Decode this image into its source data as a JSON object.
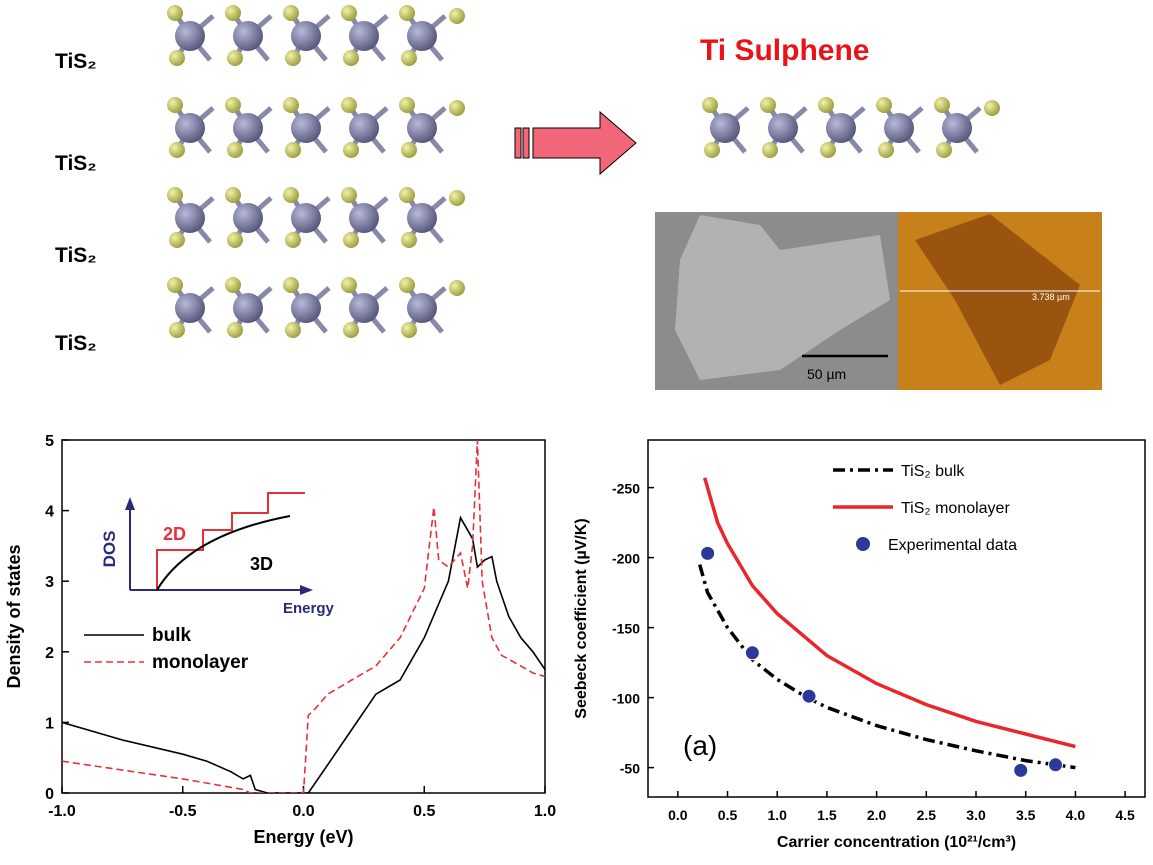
{
  "labels": [
    "TiS₂",
    "TiS₂",
    "TiS₂",
    "TiS₂"
  ],
  "title": "Ti Sulphene",
  "sem_scale": "50 µm",
  "afm_scale": "3.738 µm",
  "chart_data": [
    {
      "type": "line",
      "xlabel": "Energy (eV)",
      "ylabel": "Density of states",
      "xlim": [
        -1,
        1
      ],
      "ylim": [
        0,
        5
      ],
      "xticks": [
        {
          "value": -1,
          "label": "-1.0"
        },
        -0.5,
        {
          "value": 0,
          "label": "0.0"
        },
        0.5,
        {
          "value": 1,
          "label": "1.0"
        }
      ],
      "yticks": [
        0,
        1,
        2,
        3,
        4,
        5
      ],
      "legend": "center left",
      "inset": {
        "y": "DOS",
        "x": "Energy",
        "curve_2d": "2D",
        "curve_3d": "3D"
      },
      "series": [
        {
          "name": "bulk",
          "color": "#000000",
          "dash": "solid",
          "x": [
            -1,
            -0.75,
            -0.5,
            -0.4,
            -0.3,
            -0.25,
            -0.22,
            -0.2,
            -0.15,
            0.02,
            0.1,
            0.2,
            0.3,
            0.4,
            0.5,
            0.6,
            0.65,
            0.7,
            0.72,
            0.75,
            0.78,
            0.8,
            0.85,
            0.9,
            0.95,
            1
          ],
          "values": [
            1.0,
            0.75,
            0.55,
            0.45,
            0.3,
            0.2,
            0.25,
            0.05,
            0,
            0,
            0.4,
            0.9,
            1.4,
            1.6,
            2.2,
            3.0,
            3.9,
            3.6,
            3.2,
            3.3,
            3.35,
            3.0,
            2.5,
            2.2,
            2.0,
            1.75
          ]
        },
        {
          "name": "monolayer",
          "color": "#e8303a",
          "dash": "dashed",
          "x": [
            -1,
            -0.5,
            -0.25,
            -0.22,
            0,
            0.02,
            0.05,
            0.1,
            0.2,
            0.3,
            0.4,
            0.5,
            0.54,
            0.56,
            0.6,
            0.65,
            0.68,
            0.7,
            0.72,
            0.74,
            0.78,
            0.82,
            0.9,
            0.95,
            1
          ],
          "values": [
            0.45,
            0.2,
            0.05,
            0,
            0,
            1.1,
            1.2,
            1.4,
            1.6,
            1.8,
            2.2,
            2.9,
            4.05,
            3.3,
            3.2,
            3.4,
            2.9,
            3.5,
            5.0,
            3.0,
            2.2,
            1.95,
            1.8,
            1.7,
            1.65
          ]
        }
      ]
    },
    {
      "type": "line",
      "xlabel": "Carrier concentration (10²¹/cm³)",
      "ylabel": "Seebeck coefficient (µV/K)",
      "annotation": "(a)",
      "xlim": [
        -0.3,
        4.7
      ],
      "ylim": [
        -29,
        -284
      ],
      "xticks": [
        {
          "value": 0,
          "label": "0.0"
        },
        0.5,
        {
          "value": 1,
          "label": "1.0"
        },
        1.5,
        {
          "value": 2,
          "label": "2.0"
        },
        2.5,
        {
          "value": 3,
          "label": "3.0"
        },
        3.5,
        {
          "value": 4,
          "label": "4.0"
        },
        4.5
      ],
      "yticks": [
        -250,
        -200,
        -150,
        -100,
        -50
      ],
      "legend": "upper right",
      "series": [
        {
          "name": "TiS₂ bulk",
          "color": "#000000",
          "dash": "dashdot",
          "x": [
            0.22,
            0.3,
            0.5,
            0.75,
            1.0,
            1.3,
            1.5,
            2.0,
            2.5,
            3.0,
            3.5,
            4.0
          ],
          "values": [
            -195,
            -175,
            -150,
            -127,
            -113,
            -100,
            -93,
            -80,
            -70,
            -62,
            -55,
            -50
          ]
        },
        {
          "name": "TiS₂ monolayer",
          "color": "#e8262b",
          "dash": "solid",
          "x": [
            0.27,
            0.4,
            0.5,
            0.75,
            1.0,
            1.5,
            2.0,
            2.5,
            3.0,
            3.5,
            4.0
          ],
          "values": [
            -257,
            -225,
            -210,
            -180,
            -160,
            -130,
            -110,
            -95,
            -83,
            -74,
            -65
          ]
        },
        {
          "name": "Experimental data",
          "color": "#2b3a9a",
          "marker": "circle",
          "x": [
            0.3,
            0.75,
            1.32,
            3.45,
            3.8
          ],
          "values": [
            -203,
            -132,
            -101,
            -48,
            -52
          ]
        }
      ]
    }
  ]
}
